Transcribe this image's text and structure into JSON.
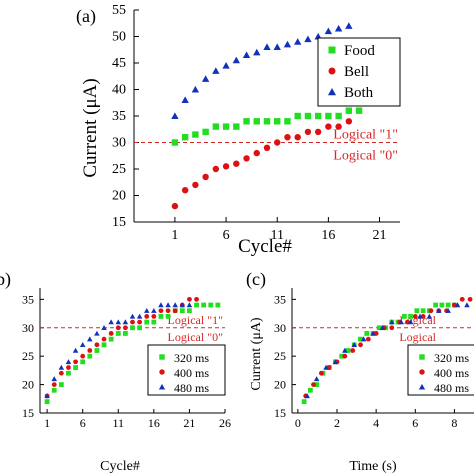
{
  "chart_data": [
    {
      "panel_label": "(a)",
      "type": "scatter",
      "xlabel": "Cycle#",
      "ylabel": "Current (μA)",
      "xlim": [
        -3,
        23
      ],
      "ylim": [
        15,
        55
      ],
      "x_ticks": [
        "1",
        "6",
        "11",
        "16",
        "21"
      ],
      "y_ticks": [
        "15",
        "20",
        "25",
        "30",
        "35",
        "40",
        "45",
        "50",
        "55"
      ],
      "threshold": {
        "y": 30,
        "label_high": "Logical \"1\"",
        "label_low": "Logical \"0\""
      },
      "legend_position": "top-right",
      "series": [
        {
          "name": "Food",
          "marker": "square",
          "color": "#22dd22",
          "x": [
            1,
            2,
            3,
            4,
            5,
            6,
            7,
            8,
            9,
            10,
            11,
            12,
            13,
            14,
            15,
            16,
            17,
            18,
            19
          ],
          "y": [
            30,
            31,
            31.5,
            32,
            33,
            33,
            33,
            34,
            34,
            34,
            34,
            34,
            35,
            35,
            35,
            35,
            35,
            36,
            36
          ]
        },
        {
          "name": "Bell",
          "marker": "circle",
          "color": "#dd1111",
          "x": [
            1,
            2,
            3,
            4,
            5,
            6,
            7,
            8,
            9,
            10,
            11,
            12,
            13,
            14,
            15,
            16,
            17,
            18
          ],
          "y": [
            18,
            21,
            22,
            23.5,
            25,
            25.5,
            26,
            27,
            28,
            29,
            30,
            31,
            31,
            32,
            32,
            33,
            33,
            34
          ]
        },
        {
          "name": "Both",
          "marker": "triangle",
          "color": "#1133bb",
          "x": [
            1,
            2,
            3,
            4,
            5,
            6,
            7,
            8,
            9,
            10,
            11,
            12,
            13,
            14,
            15,
            16,
            17,
            18
          ],
          "y": [
            35,
            38,
            40,
            42,
            43.5,
            44.5,
            45.5,
            46.5,
            47,
            48,
            48,
            48.5,
            49,
            49.5,
            50,
            51,
            51.5,
            52
          ]
        }
      ]
    },
    {
      "panel_label": "(b)",
      "type": "scatter",
      "xlabel": "Cycle#",
      "ylabel": "",
      "xlim": [
        0,
        26
      ],
      "ylim": [
        15,
        37
      ],
      "x_ticks": [
        "1",
        "6",
        "11",
        "16",
        "21",
        "26"
      ],
      "y_ticks": [
        "15",
        "20",
        "25",
        "30",
        "35"
      ],
      "threshold": {
        "y": 30,
        "label_high": "Logical \"1\"",
        "label_low": "Logical \"0\""
      },
      "legend_position": "bottom-right",
      "series": [
        {
          "name": "320 ms",
          "marker": "square",
          "color": "#22dd22",
          "x": [
            1,
            2,
            3,
            4,
            5,
            6,
            7,
            8,
            9,
            10,
            11,
            12,
            13,
            14,
            15,
            16,
            17,
            18,
            19,
            20,
            21,
            22,
            23,
            24,
            25
          ],
          "y": [
            17,
            19,
            20,
            22,
            23,
            24,
            25,
            26,
            27,
            28,
            29,
            29,
            30,
            30,
            31,
            31,
            32,
            32,
            33,
            33,
            33,
            34,
            34,
            34,
            34
          ]
        },
        {
          "name": "400 ms",
          "marker": "circle",
          "color": "#dd1111",
          "x": [
            1,
            2,
            3,
            4,
            5,
            6,
            7,
            8,
            9,
            10,
            11,
            12,
            13,
            14,
            15,
            16,
            17,
            18,
            19,
            20,
            21,
            22
          ],
          "y": [
            18,
            20,
            22,
            23,
            24,
            25,
            26,
            27,
            28,
            29,
            30,
            30,
            31,
            31,
            32,
            32,
            33,
            33,
            33,
            34,
            35,
            35
          ]
        },
        {
          "name": "480 ms",
          "marker": "triangle",
          "color": "#1133bb",
          "x": [
            1,
            2,
            3,
            4,
            5,
            6,
            7,
            8,
            9,
            10,
            11,
            12,
            13,
            14,
            15,
            16,
            17,
            18,
            19,
            20,
            21
          ],
          "y": [
            18,
            21,
            23,
            24,
            26,
            27,
            28,
            29,
            30,
            31,
            31,
            31,
            32,
            32,
            33,
            33,
            34,
            34,
            34,
            34,
            34
          ]
        }
      ]
    },
    {
      "panel_label": "(c)",
      "type": "scatter",
      "xlabel": "Time (s)",
      "ylabel": "Current (μA)",
      "xlim": [
        -0.3,
        9
      ],
      "ylim": [
        15,
        37
      ],
      "x_ticks": [
        "0",
        "2",
        "4",
        "6",
        "8"
      ],
      "y_ticks": [
        "15",
        "20",
        "25",
        "30",
        "35"
      ],
      "threshold": {
        "y": 30,
        "label_high": "Logical",
        "label_low": "Logical"
      },
      "legend_position": "bottom-right",
      "series": [
        {
          "name": "320 ms",
          "marker": "square",
          "color": "#22dd22",
          "x": [
            0.32,
            0.64,
            0.96,
            1.28,
            1.6,
            1.92,
            2.24,
            2.56,
            2.88,
            3.2,
            3.52,
            3.84,
            4.16,
            4.48,
            4.8,
            5.12,
            5.44,
            5.76,
            6.08,
            6.4,
            6.72,
            7.04,
            7.36,
            7.68,
            8.0
          ],
          "y": [
            17,
            19,
            20,
            22,
            23,
            24,
            25,
            26,
            27,
            28,
            29,
            29,
            30,
            30,
            31,
            31,
            32,
            32,
            33,
            33,
            33,
            34,
            34,
            34,
            34
          ]
        },
        {
          "name": "400 ms",
          "marker": "circle",
          "color": "#dd1111",
          "x": [
            0.4,
            0.8,
            1.2,
            1.6,
            2.0,
            2.4,
            2.8,
            3.2,
            3.6,
            4.0,
            4.4,
            4.8,
            5.2,
            5.6,
            6.0,
            6.4,
            6.8,
            7.2,
            7.6,
            8.0,
            8.4,
            8.8
          ],
          "y": [
            18,
            20,
            22,
            23,
            24,
            25,
            26,
            27,
            28,
            29,
            30,
            30,
            31,
            31,
            32,
            32,
            33,
            33,
            33,
            34,
            35,
            35
          ]
        },
        {
          "name": "480 ms",
          "marker": "triangle",
          "color": "#1133bb",
          "x": [
            0.48,
            0.96,
            1.44,
            1.92,
            2.4,
            2.88,
            3.36,
            3.84,
            4.32,
            4.8,
            5.28,
            5.76,
            6.24,
            6.72,
            7.2,
            7.68,
            8.16,
            8.64
          ],
          "y": [
            18,
            21,
            23,
            24,
            26,
            27,
            28,
            29,
            30,
            31,
            31,
            31,
            32,
            32,
            33,
            33,
            34,
            34
          ]
        }
      ]
    }
  ]
}
